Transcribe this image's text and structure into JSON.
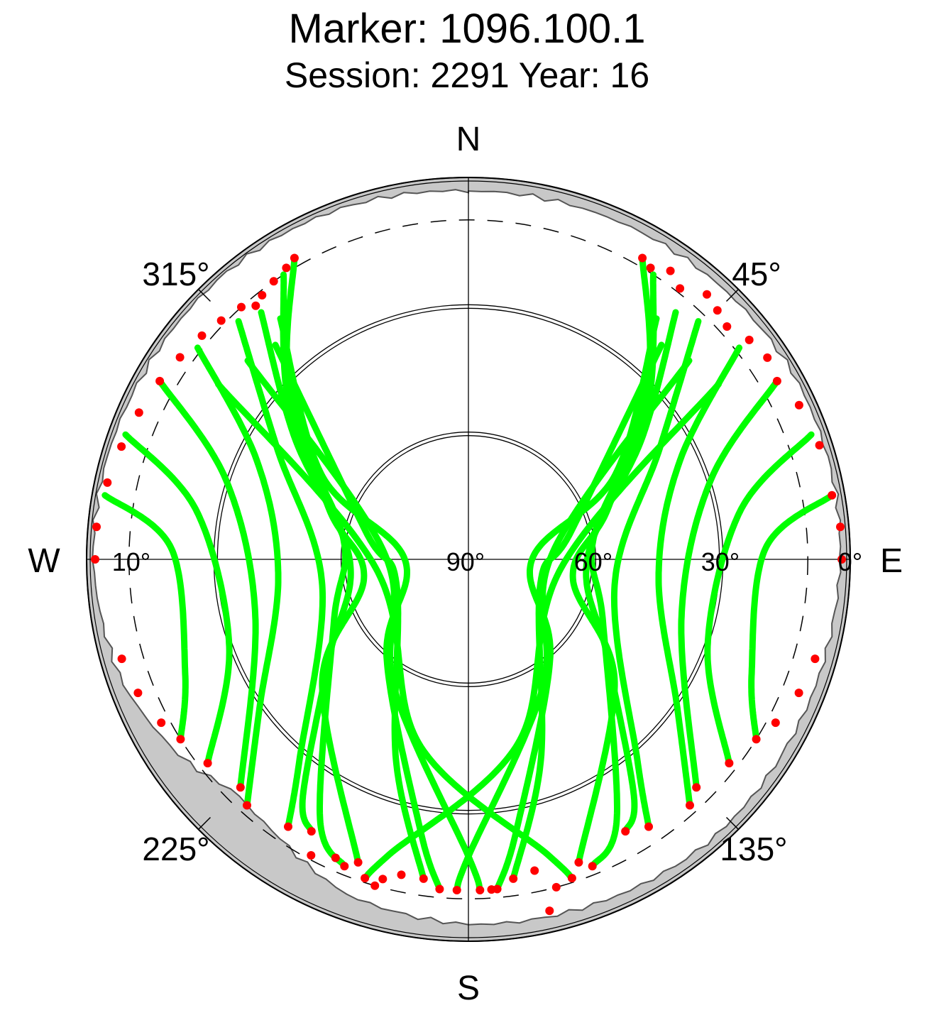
{
  "title": "Marker: 1096.100.1",
  "subtitle": "Session: 2291 Year: 16",
  "chart_data": {
    "type": "scatter",
    "projection": "polar-skyplot",
    "radial_axis": "elevation (deg)",
    "angular_axis": "azimuth (deg), clockwise from north",
    "elevation_range": [
      0,
      90
    ],
    "compass_labels": {
      "north": "N",
      "east": "E",
      "south": "S",
      "west": "W"
    },
    "azimuth_tick_labels": [
      "45°",
      "135°",
      "225°",
      "315°"
    ],
    "azimuth_tick_values": [
      45,
      135,
      225,
      315
    ],
    "elevation_tick_labels": [
      "0°",
      "30°",
      "60°",
      "90°",
      "10°"
    ],
    "elevation_tick_values": [
      0,
      30,
      60,
      90,
      10
    ],
    "elevation_rings_deg": [
      30,
      60
    ],
    "cutoff_ring_deg": 10,
    "colors": {
      "accepted": "#00ff00",
      "rejected": "#ff0000",
      "horizon_mask": "#c8c8c8",
      "axis": "#000000"
    },
    "horizon_mask_elev_deg": [
      [
        0,
        3.2
      ],
      [
        20,
        3.0
      ],
      [
        40,
        2.5
      ],
      [
        60,
        1.8
      ],
      [
        80,
        2.0
      ],
      [
        100,
        2.8
      ],
      [
        120,
        3.0
      ],
      [
        140,
        2.6
      ],
      [
        160,
        3.5
      ],
      [
        180,
        4.0
      ],
      [
        200,
        6.0
      ],
      [
        215,
        11.0
      ],
      [
        225,
        12.5
      ],
      [
        235,
        8.0
      ],
      [
        250,
        3.5
      ],
      [
        270,
        1.5
      ],
      [
        285,
        1.5
      ],
      [
        300,
        1.8
      ],
      [
        320,
        1.5
      ],
      [
        340,
        2.0
      ],
      [
        360,
        3.2
      ]
    ],
    "series": [
      {
        "status": "accepted",
        "tracks": [
          [
            [
              30,
              8
            ],
            [
              45,
              30
            ],
            [
              70,
              55
            ],
            [
              100,
              65
            ],
            [
              130,
              45
            ],
            [
              160,
              14
            ]
          ],
          [
            [
              33,
              10
            ],
            [
              50,
              35
            ],
            [
              80,
              60
            ],
            [
              115,
              55
            ],
            [
              150,
              20
            ],
            [
              158,
              12
            ]
          ],
          [
            [
              40,
              14
            ],
            [
              55,
              40
            ],
            [
              90,
              62
            ],
            [
              125,
              50
            ],
            [
              145,
              22
            ],
            [
              150,
              16
            ]
          ],
          [
            [
              44,
              12
            ],
            [
              60,
              38
            ],
            [
              100,
              55
            ],
            [
              140,
              28
            ],
            [
              146,
              14
            ]
          ],
          [
            [
              52,
              9
            ],
            [
              65,
              35
            ],
            [
              95,
              45
            ],
            [
              125,
              30
            ],
            [
              138,
              12
            ]
          ],
          [
            [
              60,
              6
            ],
            [
              72,
              30
            ],
            [
              105,
              38
            ],
            [
              135,
              14
            ]
          ],
          [
            [
              70,
              4
            ],
            [
              80,
              25
            ],
            [
              110,
              30
            ],
            [
              128,
              12
            ]
          ],
          [
            [
              80,
              3
            ],
            [
              88,
              20
            ],
            [
              112,
              18
            ],
            [
              122,
              10
            ]
          ],
          [
            [
              330,
              8
            ],
            [
              315,
              30
            ],
            [
              290,
              55
            ],
            [
              260,
              65
            ],
            [
              230,
              45
            ],
            [
              200,
              14
            ]
          ],
          [
            [
              327,
              10
            ],
            [
              310,
              35
            ],
            [
              280,
              60
            ],
            [
              245,
              55
            ],
            [
              210,
              20
            ],
            [
              202,
              12
            ]
          ],
          [
            [
              320,
              14
            ],
            [
              305,
              40
            ],
            [
              270,
              62
            ],
            [
              235,
              50
            ],
            [
              215,
              22
            ],
            [
              210,
              16
            ]
          ],
          [
            [
              316,
              12
            ],
            [
              300,
              38
            ],
            [
              260,
              55
            ],
            [
              220,
              28
            ],
            [
              214,
              14
            ]
          ],
          [
            [
              308,
              9
            ],
            [
              295,
              35
            ],
            [
              265,
              45
            ],
            [
              235,
              30
            ],
            [
              222,
              12
            ]
          ],
          [
            [
              300,
              6
            ],
            [
              288,
              30
            ],
            [
              255,
              38
            ],
            [
              225,
              14
            ]
          ],
          [
            [
              290,
              4
            ],
            [
              280,
              25
            ],
            [
              250,
              30
            ],
            [
              232,
              12
            ]
          ],
          [
            [
              280,
              3
            ],
            [
              272,
              20
            ],
            [
              248,
              18
            ],
            [
              238,
              10
            ]
          ],
          [
            [
              38,
              18
            ],
            [
              60,
              50
            ],
            [
              90,
              75
            ],
            [
              140,
              60
            ],
            [
              170,
              25
            ],
            [
              175,
              12
            ]
          ],
          [
            [
              322,
              18
            ],
            [
              300,
              50
            ],
            [
              270,
              75
            ],
            [
              220,
              60
            ],
            [
              190,
              25
            ],
            [
              185,
              12
            ]
          ],
          [
            [
              42,
              22
            ],
            [
              75,
              65
            ],
            [
              110,
              72
            ],
            [
              160,
              40
            ],
            [
              172,
              14
            ]
          ],
          [
            [
              318,
              22
            ],
            [
              285,
              65
            ],
            [
              250,
              72
            ],
            [
              200,
              40
            ],
            [
              188,
              14
            ]
          ],
          [
            [
              48,
              20
            ],
            [
              85,
              70
            ],
            [
              150,
              55
            ],
            [
              180,
              20
            ],
            [
              182,
              12
            ]
          ],
          [
            [
              312,
              20
            ],
            [
              275,
              70
            ],
            [
              210,
              55
            ],
            [
              180,
              20
            ],
            [
              178,
              12
            ]
          ],
          [
            [
              55,
              18
            ],
            [
              95,
              68
            ],
            [
              165,
              45
            ],
            [
              195,
              18
            ],
            [
              198,
              11
            ]
          ],
          [
            [
              305,
              18
            ],
            [
              265,
              68
            ],
            [
              195,
              45
            ],
            [
              165,
              18
            ],
            [
              162,
              11
            ]
          ]
        ]
      },
      {
        "status": "rejected",
        "description": "low-elevation red points at the start and end of tracks",
        "points": [
          [
            30,
            8
          ],
          [
            32,
            9
          ],
          [
            35,
            7
          ],
          [
            38,
            9
          ],
          [
            42,
            6
          ],
          [
            45,
            7
          ],
          [
            48,
            8
          ],
          [
            52,
            6
          ],
          [
            56,
            5
          ],
          [
            60,
            6
          ],
          [
            65,
            4
          ],
          [
            72,
            3
          ],
          [
            80,
            3
          ],
          [
            85,
            2
          ],
          [
            90,
            2
          ],
          [
            330,
            8
          ],
          [
            328,
            9
          ],
          [
            325,
            10
          ],
          [
            322,
            11
          ],
          [
            320,
            12
          ],
          [
            318,
            10
          ],
          [
            314,
            9
          ],
          [
            310,
            8
          ],
          [
            305,
            7
          ],
          [
            300,
            6
          ],
          [
            294,
            5
          ],
          [
            288,
            4
          ],
          [
            282,
            3
          ],
          [
            275,
            2
          ],
          [
            270,
            2
          ],
          [
            160,
            14
          ],
          [
            158,
            12
          ],
          [
            150,
            16
          ],
          [
            146,
            14
          ],
          [
            138,
            12
          ],
          [
            135,
            14
          ],
          [
            128,
            12
          ],
          [
            122,
            10
          ],
          [
            118,
            8
          ],
          [
            112,
            6
          ],
          [
            106,
            5
          ],
          [
            175,
            12
          ],
          [
            172,
            14
          ],
          [
            182,
            12
          ],
          [
            178,
            12
          ],
          [
            185,
            12
          ],
          [
            188,
            14
          ],
          [
            162,
            11
          ],
          [
            165,
            10
          ],
          [
            168,
            15
          ],
          [
            200,
            14
          ],
          [
            202,
            12
          ],
          [
            210,
            16
          ],
          [
            214,
            14
          ],
          [
            222,
            12
          ],
          [
            225,
            14
          ],
          [
            232,
            12
          ],
          [
            238,
            10
          ],
          [
            242,
            8
          ],
          [
            248,
            6
          ],
          [
            254,
            5
          ],
          [
            198,
            11
          ],
          [
            195,
            12
          ],
          [
            192,
            14
          ],
          [
            196,
            10
          ],
          [
            204,
            13
          ],
          [
            208,
            11
          ],
          [
            176,
            12
          ],
          [
            167,
            5
          ]
        ]
      }
    ]
  }
}
